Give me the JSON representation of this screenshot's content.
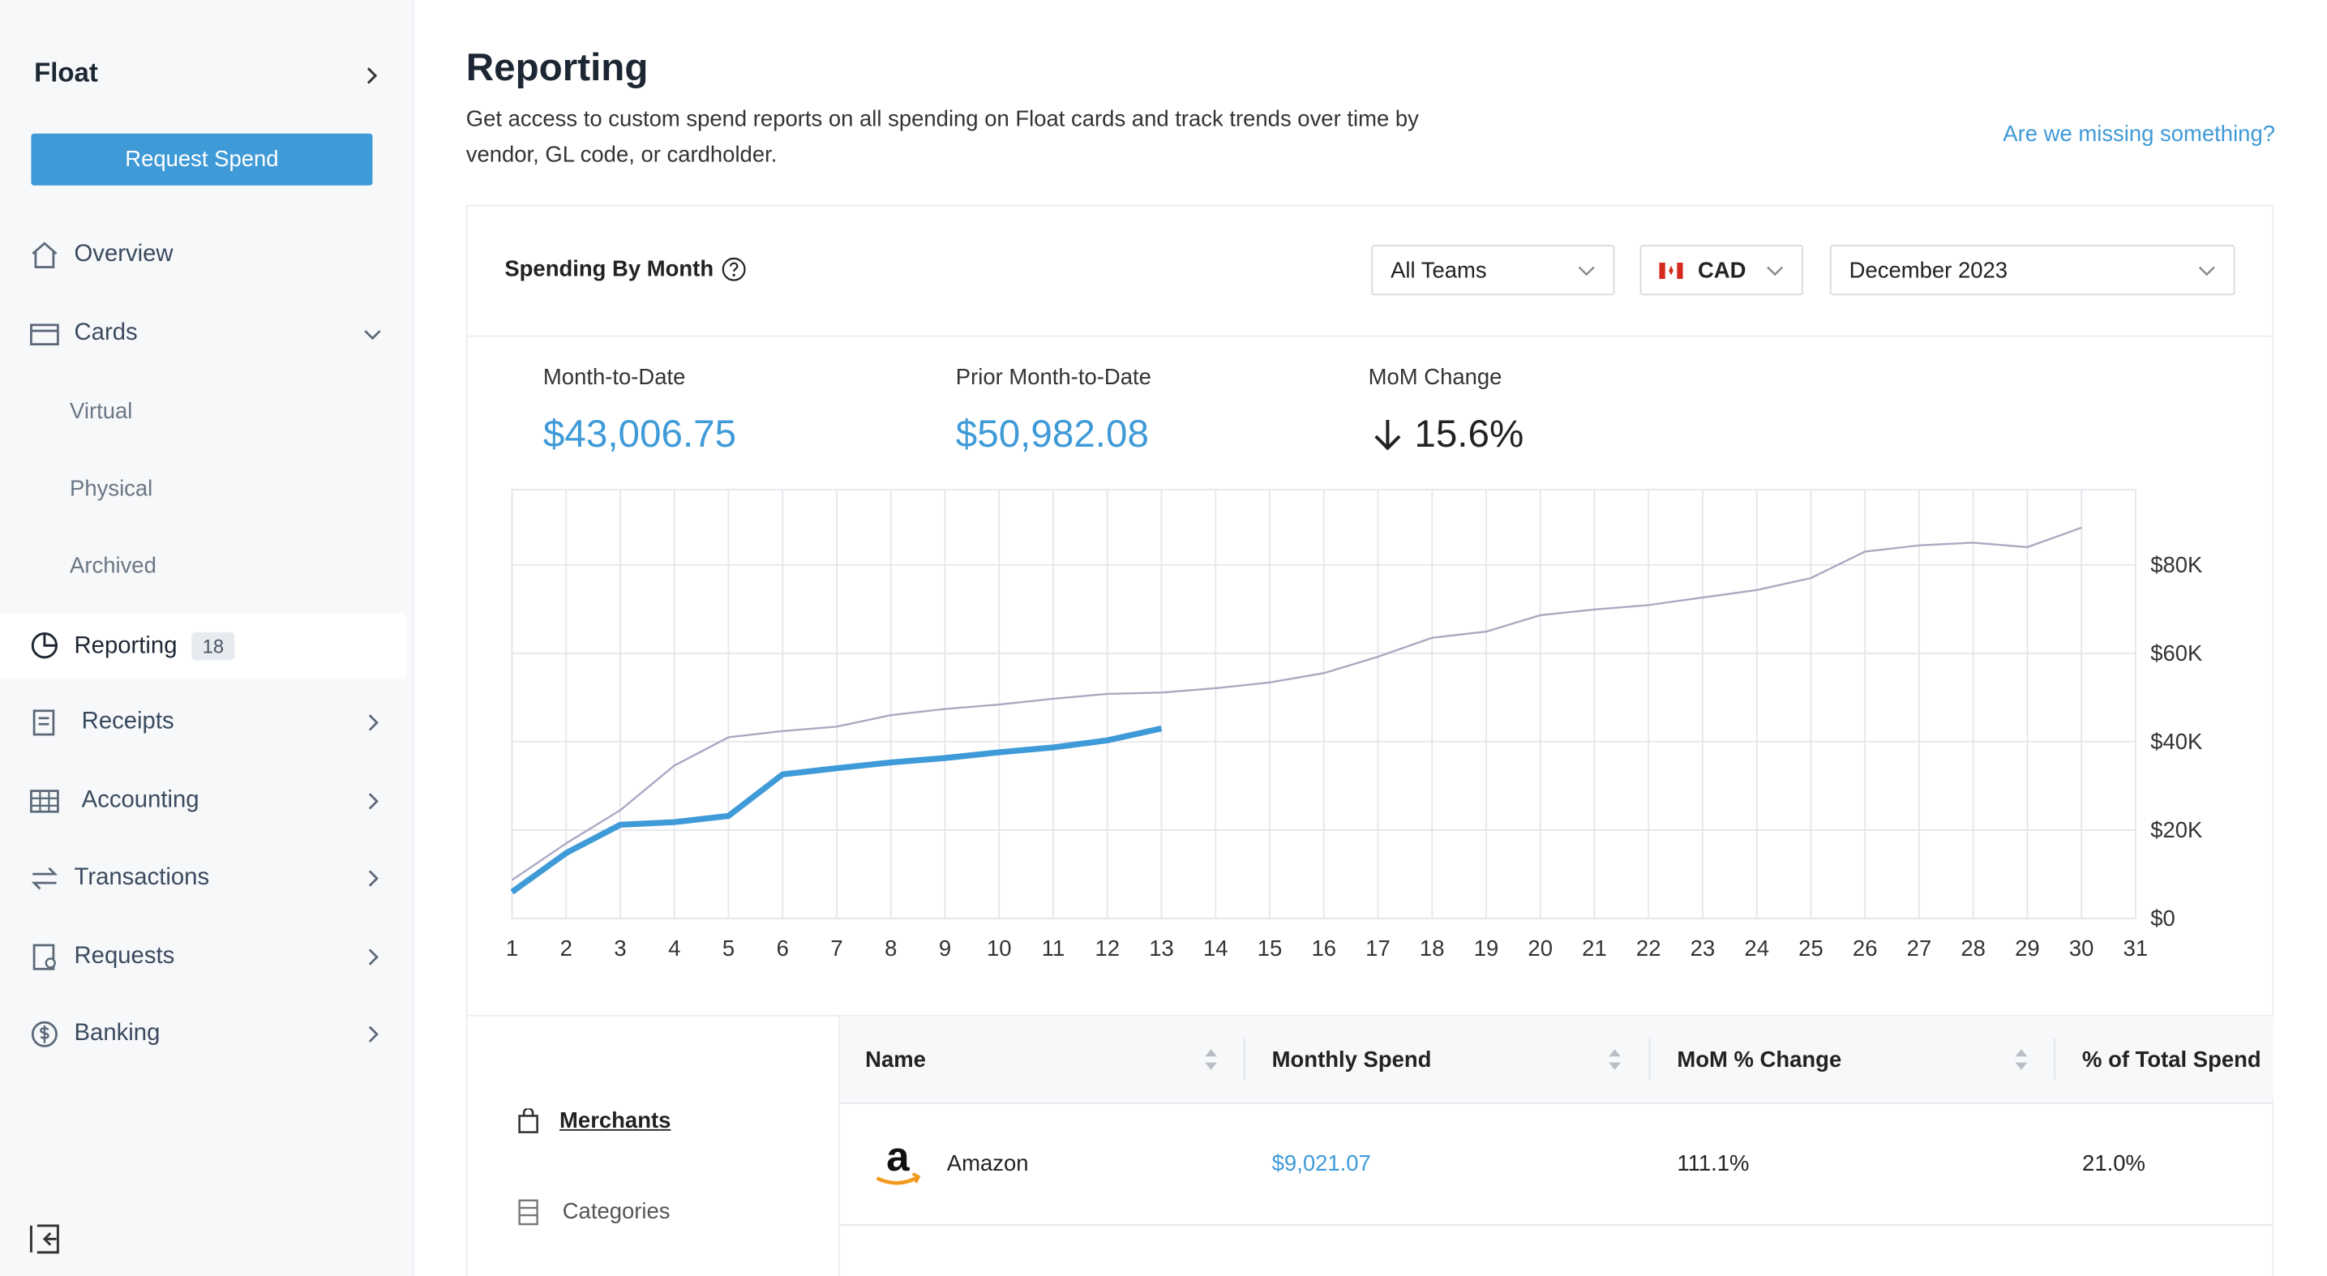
{
  "sidebar": {
    "brand": "Float",
    "request_button": "Request Spend",
    "nav": [
      {
        "label": "Overview"
      },
      {
        "label": "Cards"
      },
      {
        "label": "Virtual"
      },
      {
        "label": "Physical"
      },
      {
        "label": "Archived"
      },
      {
        "label": "Reporting",
        "badge": 18
      },
      {
        "label": "Receipts"
      },
      {
        "label": "Accounting"
      },
      {
        "label": "Transactions"
      },
      {
        "label": "Requests"
      },
      {
        "label": "Banking"
      }
    ]
  },
  "header": {
    "title": "Reporting",
    "description": "Get access to custom spend reports on all spending on Float cards and track trends over time by vendor, GL code, or cardholder.",
    "link": "Are we missing something?"
  },
  "card": {
    "title": "Spending By Month",
    "filters": {
      "team": "All Teams",
      "currency": "CAD",
      "month": "December 2023"
    },
    "stats": [
      {
        "label": "Month-to-Date",
        "value": "$43,006.75"
      },
      {
        "label": "Prior Month-to-Date",
        "value": "$50,982.08"
      },
      {
        "label": "MoM Change",
        "value": "15.6%"
      }
    ]
  },
  "chart_data": {
    "type": "line",
    "categories": [
      1,
      2,
      3,
      4,
      5,
      6,
      7,
      8,
      9,
      10,
      11,
      12,
      13,
      14,
      15,
      16,
      17,
      18,
      19,
      20,
      21,
      22,
      23,
      24,
      25,
      26,
      27,
      28,
      29,
      30,
      31
    ],
    "series": [
      {
        "color": "#a9a9c2",
        "values": [
          8700,
          17000,
          24500,
          34600,
          41000,
          42400,
          43400,
          46000,
          47400,
          48400,
          49700,
          50800,
          51100,
          52100,
          53400,
          55500,
          59200,
          63500,
          64900,
          68600,
          69900,
          70900,
          72600,
          74300,
          77000,
          83000,
          84400,
          85000,
          84000,
          88400,
          null
        ]
      },
      {
        "color": "#3f9ad8",
        "values": [
          6000,
          14800,
          21200,
          21800,
          23200,
          32600,
          34000,
          35300,
          36300,
          37600,
          38700,
          40300,
          43000,
          null,
          null,
          null,
          null,
          null,
          null,
          null,
          null,
          null,
          null,
          null,
          null,
          null,
          null,
          null,
          null,
          null,
          null
        ]
      }
    ],
    "ylim": [
      0,
      97000
    ],
    "yticks": [
      {
        "value": 0,
        "label": "$0"
      },
      {
        "value": 20000,
        "label": "$20K"
      },
      {
        "value": 40000,
        "label": "$40K"
      },
      {
        "value": 60000,
        "label": "$60K"
      },
      {
        "value": 80000,
        "label": "$80K"
      }
    ],
    "grid": true,
    "y_axis_side": "right"
  },
  "table": {
    "tabs": [
      "Merchants",
      "Categories"
    ],
    "columns": [
      "Name",
      "Monthly Spend",
      "MoM % Change",
      "% of Total Spend"
    ],
    "rows": [
      [
        "Amazon",
        "$9,021.07",
        "111.1%",
        "21.0%"
      ]
    ]
  }
}
